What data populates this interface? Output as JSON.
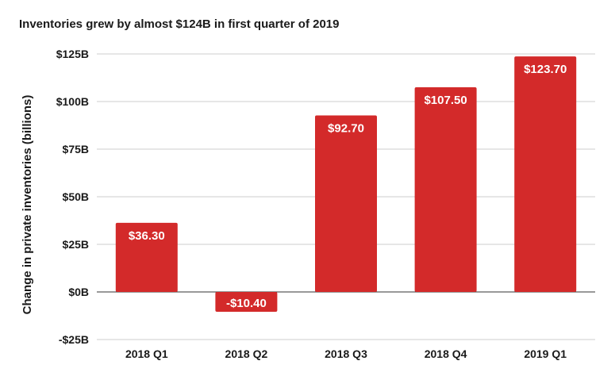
{
  "chart_data": {
    "type": "bar",
    "title": "Inventories grew by almost $124B in first quarter of 2019",
    "xlabel": "",
    "ylabel": "Change in private inventories (billions)",
    "categories": [
      "2018 Q1",
      "2018 Q2",
      "2018 Q3",
      "2018 Q4",
      "2019 Q1"
    ],
    "values": [
      36.3,
      -10.4,
      92.7,
      107.5,
      123.7
    ],
    "data_labels": [
      "$36.30",
      "-$10.40",
      "$92.70",
      "$107.50",
      "$123.70"
    ],
    "ylim": [
      -25,
      125
    ],
    "yticks": [
      -25,
      0,
      25,
      50,
      75,
      100,
      125
    ],
    "ytick_labels": [
      "-$25B",
      "$0B",
      "$25B",
      "$50B",
      "$75B",
      "$100B",
      "$125B"
    ],
    "grid": true,
    "legend": "none",
    "colors": {
      "bar": "#d32a2a",
      "grid": "#cccccc",
      "zero_line": "#333333"
    }
  }
}
